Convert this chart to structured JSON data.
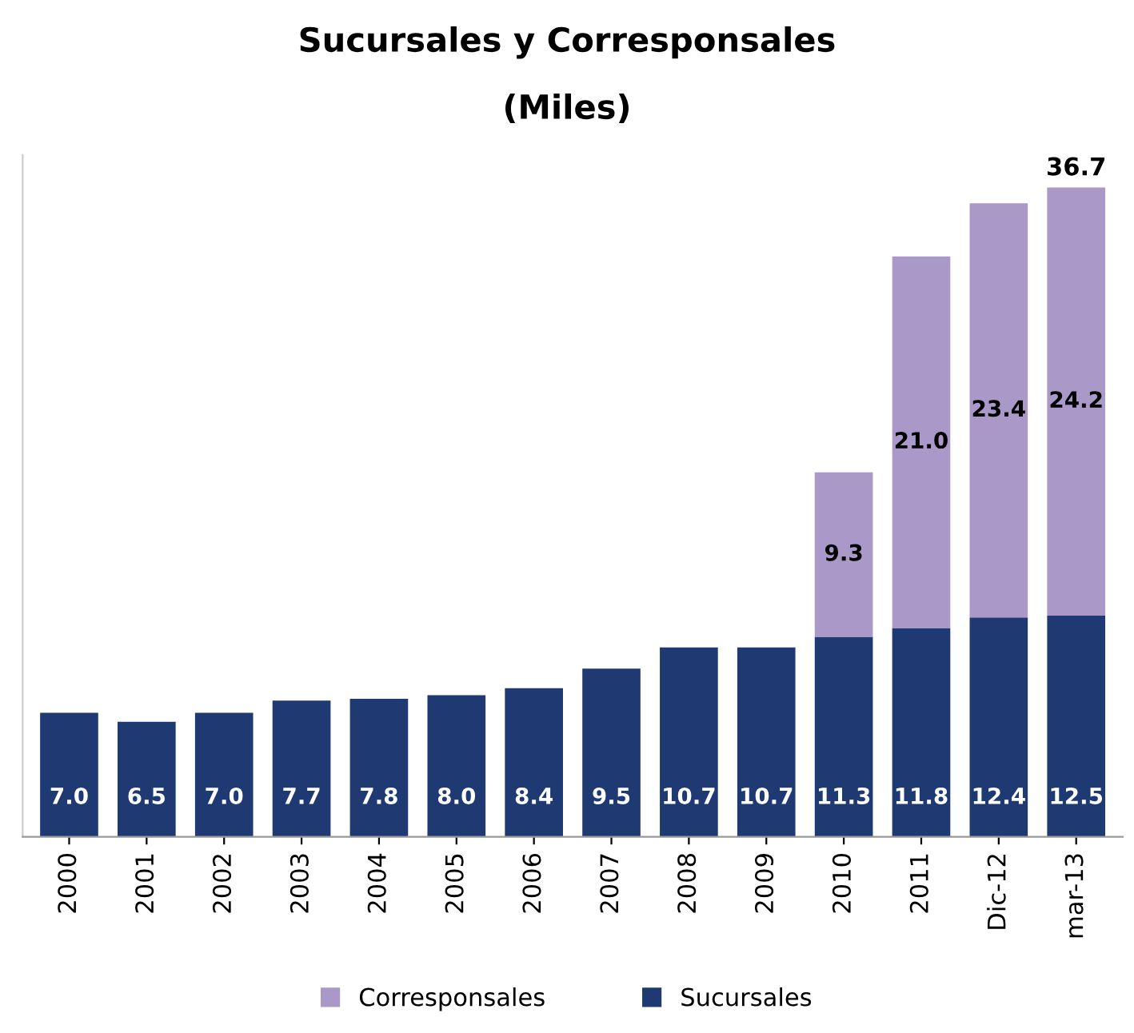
{
  "chart_data": {
    "type": "bar",
    "title": "Sucursales y Corresponsales",
    "subtitle": "(Miles)",
    "categories": [
      "2000",
      "2001",
      "2002",
      "2003",
      "2004",
      "2005",
      "2006",
      "2007",
      "2008",
      "2009",
      "2010",
      "2011",
      "Dic-12",
      "mar-13"
    ],
    "stacked": true,
    "legend": "bottom",
    "grid": false,
    "series": [
      {
        "name": "Sucursales",
        "color": "#1f3a73",
        "values": [
          7.0,
          6.5,
          7.0,
          7.7,
          7.8,
          8.0,
          8.4,
          9.5,
          10.7,
          10.7,
          11.3,
          11.8,
          12.4,
          12.5
        ],
        "value_labels": [
          "7.0",
          "6.5",
          "7.0",
          "7.7",
          "7.8",
          "8.0",
          "8.4",
          "9.5",
          "10.7",
          "10.7",
          "11.3",
          "11.8",
          "12.4",
          "12.5"
        ]
      },
      {
        "name": "Corresponsales",
        "color": "#a998c8",
        "values": [
          null,
          null,
          null,
          null,
          null,
          null,
          null,
          null,
          null,
          null,
          9.3,
          21.0,
          23.4,
          24.2
        ],
        "value_labels": [
          null,
          null,
          null,
          null,
          null,
          null,
          null,
          null,
          null,
          null,
          "9.3",
          "21.0",
          "23.4",
          "24.2"
        ]
      }
    ],
    "totals": [
      null,
      null,
      null,
      null,
      null,
      null,
      null,
      null,
      null,
      null,
      null,
      null,
      null,
      "36.7"
    ]
  }
}
